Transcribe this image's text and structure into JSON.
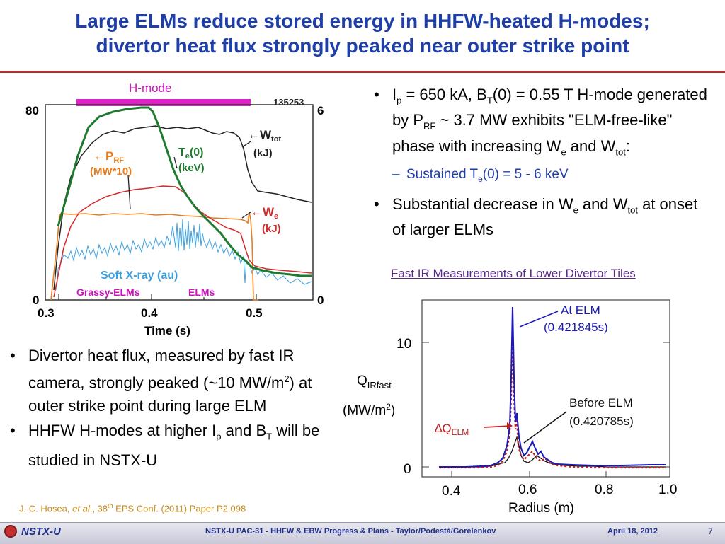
{
  "title": {
    "line1": "Large ELMs reduce stored energy in HHFW-heated H-modes;",
    "line2": "divertor heat flux strongly peaked near outer strike point"
  },
  "left_plot": {
    "hmode_label": "H-mode",
    "shot": "135253",
    "y_left_top": "80",
    "y_left_bottom": "0",
    "y_right_top": "6",
    "y_right_bottom": "0",
    "x_ticks": [
      "0.3",
      "0.4",
      "0.5"
    ],
    "xlabel": "Time (s)",
    "prf_label": "←P",
    "prf_sub": "RF",
    "prf_unit": "(MW*10)",
    "te_label": "T",
    "te_sub": "e",
    "te_rest": "(0)",
    "te_unit": "(keV)",
    "wtot_label": "←W",
    "wtot_sub": "tot",
    "wtot_unit": "(kJ)",
    "we_label": "←W",
    "we_sub": "e",
    "we_unit": "(kJ)",
    "sxr_label": "Soft X-ray (au)",
    "grassy_label": "Grassy-ELMs",
    "elms_label": "ELMs",
    "colors": {
      "prf": "#e87d1f",
      "te": "#1e7a2e",
      "wtot": "#222222",
      "we": "#d12b2b",
      "sxr": "#3aa0e0",
      "hmode": "#e020c8"
    }
  },
  "bullets_right": {
    "b1_pre": "I",
    "b1_sub1": "p",
    "b1_mid1": " = 650 kA, B",
    "b1_sub2": "T",
    "b1_mid2": "(0) = 0.55 T H-mode generated by P",
    "b1_sub3": "RF",
    "b1_mid3": " ~ 3.7 MW exhibits \"ELM-free-like\" phase with increasing W",
    "b1_sub4": "e",
    "b1_mid4": " and W",
    "b1_sub5": "tot",
    "b1_end": ":",
    "sub_pre": "Sustained T",
    "sub_sub": "e",
    "sub_end": "(0) = 5 - 6 keV",
    "b2_pre": "Substantial decrease in W",
    "b2_sub1": "e",
    "b2_mid": " and W",
    "b2_sub2": "tot",
    "b2_end": " at onset of larger ELMs"
  },
  "ir_title": "Fast IR Measurements of Lower Divertor Tiles",
  "ir_plot": {
    "ylabel_main": "Q",
    "ylabel_sub": "IRfast",
    "ylabel_unit_pre": "(MW/m",
    "ylabel_unit_sup": "2",
    "ylabel_unit_end": ")",
    "y_ticks": [
      "10",
      "0"
    ],
    "x_ticks": [
      "0.4",
      "0.6",
      "0.8",
      "1.0"
    ],
    "xlabel": "Radius (m)",
    "at_elm_label": "At ELM",
    "at_elm_time": "(0.421845s)",
    "before_elm_label": "Before ELM",
    "before_elm_time": "(0.420785s)",
    "dq_label": "∆Q",
    "dq_sub": "ELM",
    "colors": {
      "at_elm": "#1a1ab8",
      "before_elm": "#111111",
      "delta": "#c02020"
    }
  },
  "bullets_left": {
    "b1_pre": "Divertor heat flux, measured by fast IR camera, strongly peaked (~10 MW/m",
    "b1_sup": "2",
    "b1_end": ") at outer strike point during large ELM",
    "b2_pre": "HHFW H-modes at higher I",
    "b2_sub1": "p",
    "b2_mid": " and B",
    "b2_sub2": "T",
    "b2_end": " will be studied in NSTX-U"
  },
  "citation": {
    "pre": "J. C. Hosea, ",
    "etal": "et al",
    "mid": "., 38",
    "sup": "th",
    "end": " EPS Conf. (2011) Paper P2.098"
  },
  "footer": {
    "logo_text": "NSTX-U",
    "center": "NSTX-U PAC-31 - HHFW & EBW Progress & Plans  - Taylor/Podestà/Gorelenkov",
    "date": "April 18, 2012",
    "page": "7"
  }
}
